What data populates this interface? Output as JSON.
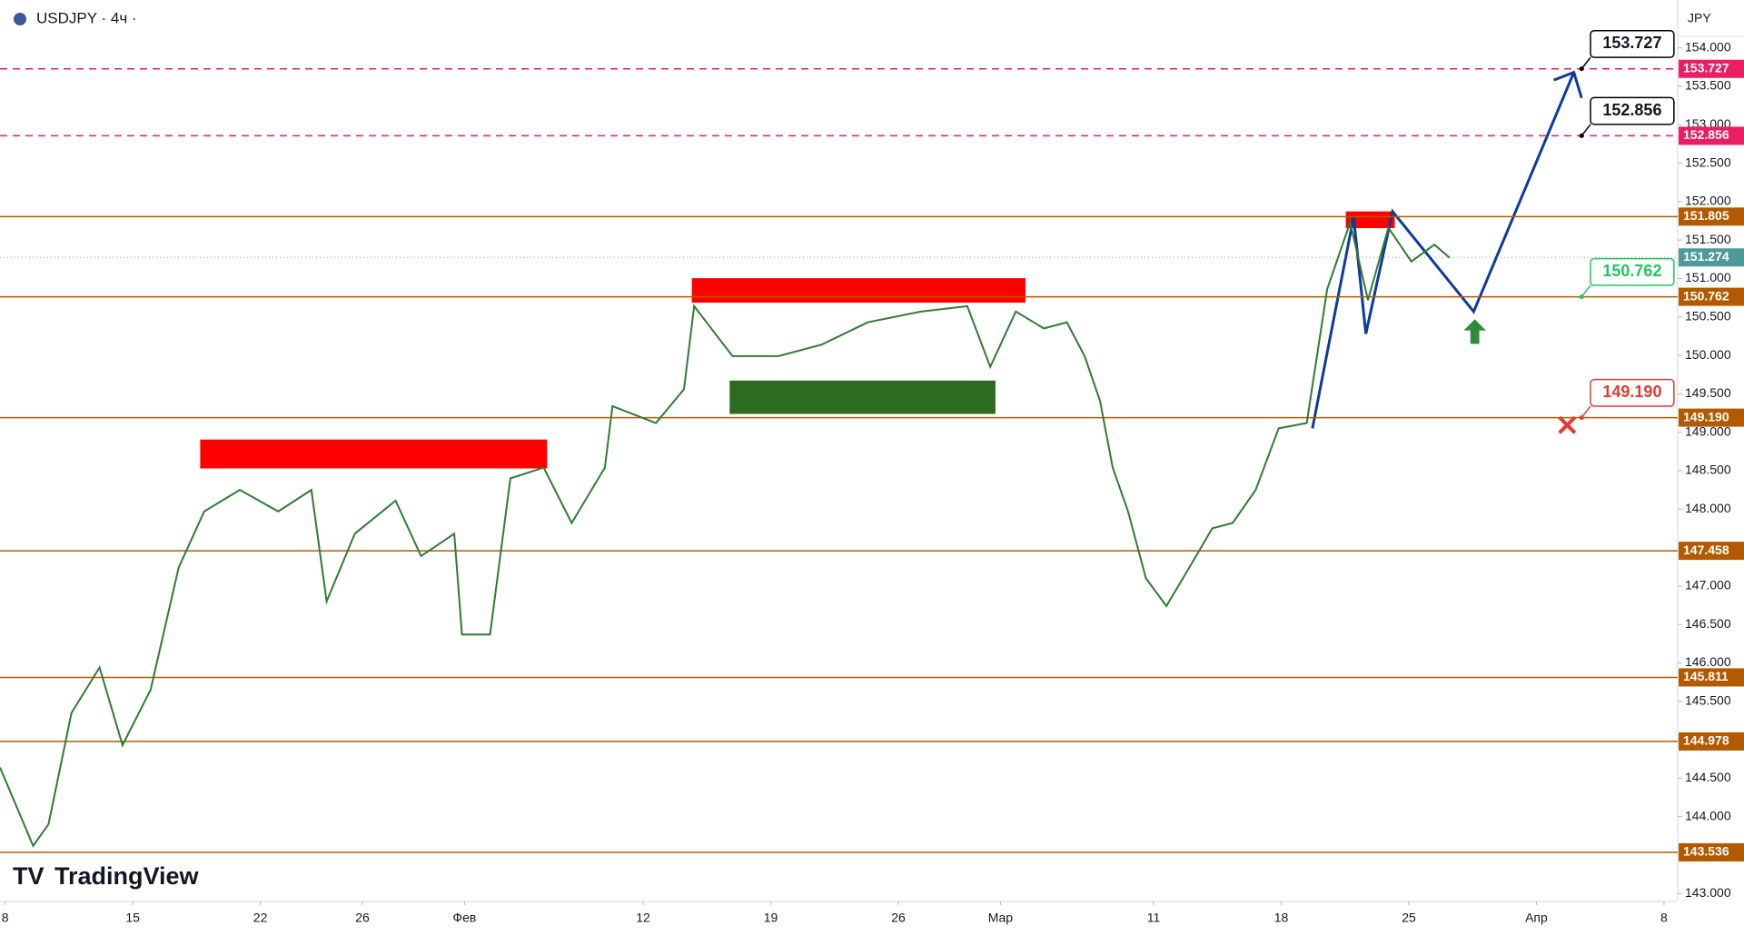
{
  "header": {
    "symbol": "USDJPY · 4ч ·",
    "currency": "JPY",
    "brand": "TradingView"
  },
  "chart_data": {
    "type": "line",
    "x": [
      -0.2,
      1.1,
      1.7,
      2.6,
      3.7,
      4.6,
      5.7,
      6.8,
      7.8,
      9.2,
      10.7,
      12.0,
      12.6,
      13.7,
      15.3,
      16.3,
      17.6,
      17.9,
      19.0,
      19.8,
      21.1,
      22.2,
      23.5,
      23.8,
      25.5,
      26.6,
      27.0,
      28.5,
      30.3,
      32.0,
      33.8,
      35.9,
      37.7,
      38.6,
      39.6,
      40.7,
      41.6,
      42.3,
      42.9,
      43.4,
      44.0,
      44.7,
      45.5,
      46.4,
      47.3,
      48.1,
      49.0,
      49.9,
      51.0,
      51.8,
      52.7,
      53.4,
      54.2,
      55.1,
      56.0,
      56.6
    ],
    "series": [
      {
        "color": "#2e7d32",
        "values": [
          144.64,
          143.62,
          143.9,
          145.35,
          145.94,
          144.93,
          145.65,
          147.24,
          147.97,
          148.25,
          147.97,
          148.25,
          146.8,
          147.68,
          148.11,
          147.39,
          147.68,
          146.37,
          146.37,
          148.4,
          148.54,
          147.82,
          148.54,
          149.34,
          149.12,
          149.56,
          150.64,
          149.99,
          149.99,
          150.14,
          150.43,
          150.57,
          150.64,
          149.85,
          150.57,
          150.35,
          150.43,
          149.99,
          149.41,
          148.54,
          147.97,
          147.1,
          146.74,
          147.24,
          147.75,
          147.82,
          148.25,
          149.05,
          149.12,
          150.86,
          151.73,
          150.72,
          151.66,
          151.22,
          151.44,
          151.27
        ]
      }
    ],
    "xlim": [
      -0.2,
      65.5
    ],
    "xticks": [
      {
        "value": 0,
        "label": "8"
      },
      {
        "value": 5,
        "label": "15"
      },
      {
        "value": 10,
        "label": "22"
      },
      {
        "value": 14,
        "label": "26"
      },
      {
        "value": 18,
        "label": "Фев"
      },
      {
        "value": 25,
        "label": "12"
      },
      {
        "value": 30,
        "label": "19"
      },
      {
        "value": 35,
        "label": "26"
      },
      {
        "value": 39,
        "label": "Мар"
      },
      {
        "value": 45,
        "label": "11"
      },
      {
        "value": 50,
        "label": "18"
      },
      {
        "value": 55,
        "label": "25"
      },
      {
        "value": 60,
        "label": "Апр"
      },
      {
        "value": 65,
        "label": "8"
      }
    ],
    "ylim": [
      142.8,
      154.6
    ],
    "yticks": [
      {
        "value": 143,
        "label": "143.000"
      },
      {
        "value": 143.5,
        "label": "143.500"
      },
      {
        "value": 144,
        "label": "144.000"
      },
      {
        "value": 144.5,
        "label": "144.500"
      },
      {
        "value": 145,
        "label": "145.000"
      },
      {
        "value": 145.5,
        "label": "145.500"
      },
      {
        "value": 146,
        "label": "146.000"
      },
      {
        "value": 146.5,
        "label": "146.500"
      },
      {
        "value": 147,
        "label": "147.000"
      },
      {
        "value": 147.5,
        "label": "147.500"
      },
      {
        "value": 148,
        "label": "148.000"
      },
      {
        "value": 148.5,
        "label": "148.500"
      },
      {
        "value": 149,
        "label": "149.000"
      },
      {
        "value": 149.5,
        "label": "149.500"
      },
      {
        "value": 150,
        "label": "150.000"
      },
      {
        "value": 150.5,
        "label": "150.500"
      },
      {
        "value": 151,
        "label": "151.000"
      },
      {
        "value": 151.5,
        "label": "151.500"
      },
      {
        "value": 152,
        "label": "152.000"
      },
      {
        "value": 152.5,
        "label": "152.500"
      },
      {
        "value": 153,
        "label": "153.000"
      },
      {
        "value": 153.5,
        "label": "153.500"
      },
      {
        "value": 154,
        "label": "154.000"
      }
    ],
    "levels": [
      {
        "value": 151.805,
        "label": "151.805"
      },
      {
        "value": 150.762,
        "label": "150.762"
      },
      {
        "value": 149.19,
        "label": "149.190"
      },
      {
        "value": 147.458,
        "label": "147.458"
      },
      {
        "value": 145.811,
        "label": "145.811"
      },
      {
        "value": 144.978,
        "label": "144.978"
      },
      {
        "value": 143.536,
        "label": "143.536"
      }
    ],
    "level_color": "#b35a00",
    "targets": [
      {
        "value": 153.727,
        "label": "153.727"
      },
      {
        "value": 152.856,
        "label": "152.856"
      }
    ],
    "target_color": "#e91e63",
    "last_price": {
      "value": 151.274,
      "label": "151.274",
      "color": "#4d9a9a"
    },
    "callouts": [
      {
        "value": 153.727,
        "label": "153.727",
        "color": "#000000"
      },
      {
        "value": 152.856,
        "label": "152.856",
        "color": "#000000"
      },
      {
        "value": 150.762,
        "label": "150.762",
        "color": "#22c55e"
      },
      {
        "value": 149.19,
        "label": "149.190",
        "color": "#e53935"
      }
    ]
  }
}
